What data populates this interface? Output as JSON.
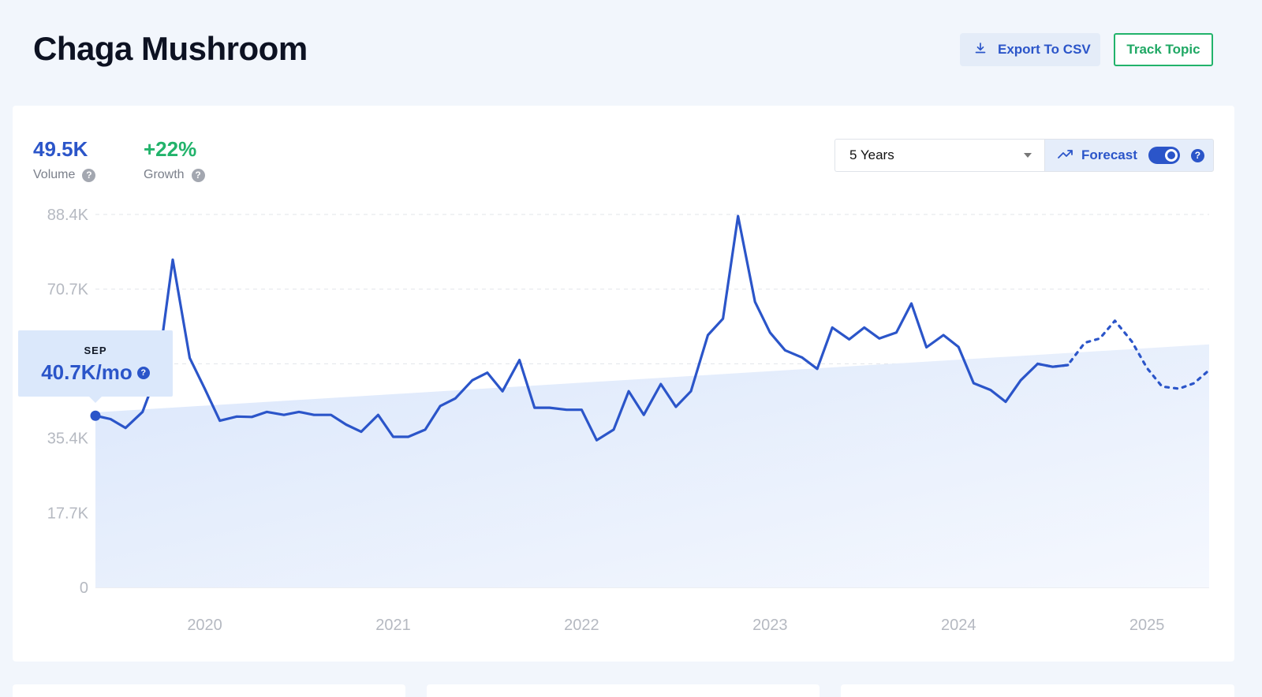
{
  "header": {
    "title": "Chaga Mushroom",
    "export_label": "Export To CSV",
    "track_label": "Track Topic"
  },
  "stats": {
    "volume_value": "49.5K",
    "volume_label": "Volume",
    "growth_value": "+22%",
    "growth_label": "Growth"
  },
  "controls": {
    "range_selected": "5 Years",
    "forecast_label": "Forecast",
    "forecast_enabled": true
  },
  "tooltip": {
    "month": "SEP",
    "value": "40.7K/mo"
  },
  "colors": {
    "accent": "#2b55c9",
    "growth": "#22b36b",
    "area": "#dde9fb"
  },
  "icons": {
    "export": "download-icon",
    "forecast": "trend-up-icon",
    "help": "question-icon"
  },
  "chart_data": {
    "type": "line",
    "title": "",
    "xlabel": "",
    "ylabel": "",
    "y_ticks": [
      "0",
      "17.7K",
      "35.4K",
      "70.7K",
      "88.4K"
    ],
    "y_tick_values": [
      0,
      17700,
      35400,
      70700,
      88400
    ],
    "ylim": [
      0,
      88400
    ],
    "x_ticks": [
      "2020",
      "2021",
      "2022",
      "2023",
      "2024",
      "2025"
    ],
    "x_tick_values": [
      2020.25,
      2021.25,
      2022.25,
      2023.25,
      2024.25,
      2025.25
    ],
    "xlim": [
      2019.67,
      2025.58
    ],
    "grid": "horizontal-dashed",
    "series": [
      {
        "kind": "actual",
        "x": [
          2019.67,
          2019.75,
          2019.83,
          2019.92,
          2020.0,
          2020.08,
          2020.17,
          2020.25,
          2020.33,
          2020.42,
          2020.5,
          2020.58,
          2020.67,
          2020.75,
          2020.83,
          2020.92,
          2021.0,
          2021.08,
          2021.17,
          2021.25,
          2021.33,
          2021.42,
          2021.5,
          2021.58,
          2021.67,
          2021.75,
          2021.83,
          2021.92,
          2022.0,
          2022.08,
          2022.17,
          2022.25,
          2022.33,
          2022.42,
          2022.5,
          2022.58,
          2022.67,
          2022.75,
          2022.83,
          2022.92,
          2023.0,
          2023.08,
          2023.17,
          2023.25,
          2023.33,
          2023.42,
          2023.5,
          2023.58,
          2023.67,
          2023.75,
          2023.83,
          2023.92,
          2024.0,
          2024.08,
          2024.17,
          2024.25,
          2024.33,
          2024.42,
          2024.5,
          2024.58,
          2024.67,
          2024.75,
          2024.83
        ],
        "y": [
          40700,
          39900,
          37800,
          41600,
          51100,
          77700,
          54400,
          47100,
          39500,
          40500,
          40400,
          41600,
          40900,
          41600,
          40900,
          40900,
          38600,
          36900,
          40900,
          35700,
          35700,
          37400,
          43000,
          44800,
          49100,
          50900,
          46500,
          53900,
          42600,
          42600,
          42100,
          42100,
          34900,
          37400,
          46500,
          40900,
          48200,
          42800,
          46500,
          59800,
          63700,
          88000,
          67700,
          60400,
          56200,
          54500,
          51800,
          61600,
          58800,
          61600,
          59000,
          60400,
          67300,
          56900,
          59800,
          57000,
          48400,
          46800,
          44000,
          49100,
          53000,
          52300,
          52700
        ],
        "style": "solid"
      },
      {
        "kind": "forecast",
        "x": [
          2024.67,
          2024.75,
          2024.83,
          2024.92,
          2025.0,
          2025.08,
          2025.17,
          2025.25,
          2025.33,
          2025.42,
          2025.5,
          2025.58
        ],
        "y": [
          53000,
          52300,
          52700,
          58000,
          59000,
          63200,
          58300,
          52000,
          47600,
          47100,
          48400,
          51500
        ],
        "style": "dashed"
      },
      {
        "kind": "trend",
        "x": [
          2019.67,
          2025.58
        ],
        "y": [
          41500,
          57600
        ],
        "style": "area"
      }
    ]
  }
}
